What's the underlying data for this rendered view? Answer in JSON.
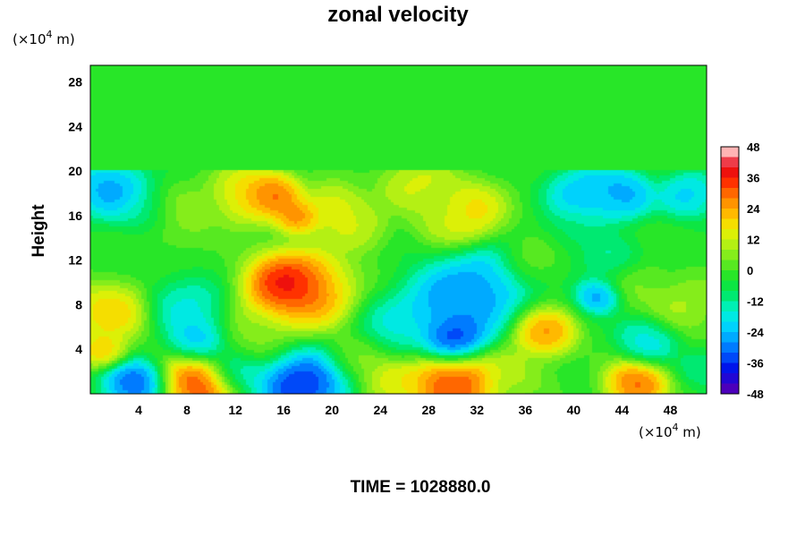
{
  "chart_data": {
    "type": "heatmap",
    "title": "zonal velocity",
    "ylabel": "Height",
    "x_unit": "(×10",
    "x_unit_exp": "4",
    "x_unit_tail": " m)",
    "y_unit": "(×10",
    "y_unit_exp": "4",
    "y_unit_tail": " m)",
    "footer": "TIME = 1028880.0",
    "xlim": [
      0,
      51
    ],
    "ylim": [
      0,
      29.5
    ],
    "x_ticks": [
      "4",
      "8",
      "12",
      "16",
      "20",
      "24",
      "28",
      "32",
      "36",
      "40",
      "44",
      "48"
    ],
    "y_ticks": [
      "4",
      "8",
      "12",
      "16",
      "20",
      "24",
      "28"
    ],
    "colorbar": {
      "min": -48,
      "max": 48,
      "ticks": [
        "48",
        "36",
        "24",
        "12",
        "0",
        "-12",
        "-24",
        "-36",
        "-48"
      ]
    },
    "upper_layer_value": 0,
    "blobs": [
      {
        "x": 1.5,
        "y": 18.5,
        "r": 2.5,
        "v": -32
      },
      {
        "x": 4.5,
        "y": 16.5,
        "r": 2.0,
        "v": -16
      },
      {
        "x": 1.5,
        "y": 7.5,
        "r": 2.5,
        "v": 28
      },
      {
        "x": 1.0,
        "y": 4.0,
        "r": 1.5,
        "v": 30
      },
      {
        "x": 3.5,
        "y": 1.0,
        "r": 2.0,
        "v": -42
      },
      {
        "x": 8.0,
        "y": 8.0,
        "r": 2.5,
        "v": -20
      },
      {
        "x": 9.0,
        "y": 5.0,
        "r": 2.0,
        "v": -30
      },
      {
        "x": 7.0,
        "y": 16.0,
        "r": 2.5,
        "v": 12
      },
      {
        "x": 9.0,
        "y": 1.0,
        "r": 2.5,
        "v": 48
      },
      {
        "x": 13.0,
        "y": 18.0,
        "r": 2.5,
        "v": 28
      },
      {
        "x": 15.0,
        "y": 18.0,
        "r": 1.8,
        "v": 40
      },
      {
        "x": 17.0,
        "y": 16.0,
        "r": 1.5,
        "v": 38
      },
      {
        "x": 17.0,
        "y": 9.5,
        "r": 3.5,
        "v": 44
      },
      {
        "x": 16.0,
        "y": 10.0,
        "r": 2.0,
        "v": 46
      },
      {
        "x": 13.0,
        "y": 5.0,
        "r": 2.5,
        "v": 10
      },
      {
        "x": 12.0,
        "y": 2.0,
        "r": 2.0,
        "v": -22
      },
      {
        "x": 17.5,
        "y": 1.0,
        "r": 3.0,
        "v": -46
      },
      {
        "x": 20.0,
        "y": 17.0,
        "r": 2.0,
        "v": 24
      },
      {
        "x": 22.0,
        "y": 15.0,
        "r": 2.0,
        "v": 18
      },
      {
        "x": 22.0,
        "y": 3.5,
        "r": 2.0,
        "v": 12
      },
      {
        "x": 25.0,
        "y": 6.0,
        "r": 2.5,
        "v": -18
      },
      {
        "x": 25.0,
        "y": 1.0,
        "r": 2.0,
        "v": 24
      },
      {
        "x": 27.0,
        "y": 19.0,
        "r": 2.5,
        "v": 20
      },
      {
        "x": 29.0,
        "y": 16.0,
        "r": 2.0,
        "v": 12
      },
      {
        "x": 31.0,
        "y": 16.5,
        "r": 2.5,
        "v": 28
      },
      {
        "x": 30.0,
        "y": 8.0,
        "r": 3.5,
        "v": -36
      },
      {
        "x": 30.0,
        "y": 5.0,
        "r": 2.0,
        "v": -46
      },
      {
        "x": 33.0,
        "y": 10.5,
        "r": 2.5,
        "v": -30
      },
      {
        "x": 30.0,
        "y": 1.0,
        "r": 3.0,
        "v": 46
      },
      {
        "x": 35.0,
        "y": 2.0,
        "r": 2.0,
        "v": 14
      },
      {
        "x": 37.5,
        "y": 5.5,
        "r": 2.0,
        "v": 36
      },
      {
        "x": 36.0,
        "y": 12.0,
        "r": 2.0,
        "v": 8
      },
      {
        "x": 40.0,
        "y": 15.0,
        "r": 2.0,
        "v": -10
      },
      {
        "x": 41.0,
        "y": 18.0,
        "r": 2.5,
        "v": -30
      },
      {
        "x": 44.0,
        "y": 18.0,
        "r": 2.0,
        "v": -32
      },
      {
        "x": 43.0,
        "y": 12.0,
        "r": 2.0,
        "v": -14
      },
      {
        "x": 42.0,
        "y": 9.0,
        "r": 1.5,
        "v": -34
      },
      {
        "x": 45.0,
        "y": 10.0,
        "r": 2.0,
        "v": 10
      },
      {
        "x": 46.0,
        "y": 5.0,
        "r": 2.0,
        "v": -22
      },
      {
        "x": 45.0,
        "y": 1.0,
        "r": 2.0,
        "v": 42
      },
      {
        "x": 49.5,
        "y": 18.0,
        "r": 2.0,
        "v": -26
      },
      {
        "x": 49.0,
        "y": 8.0,
        "r": 2.5,
        "v": 14
      },
      {
        "x": 50.5,
        "y": 2.5,
        "r": 1.5,
        "v": -14
      }
    ]
  }
}
